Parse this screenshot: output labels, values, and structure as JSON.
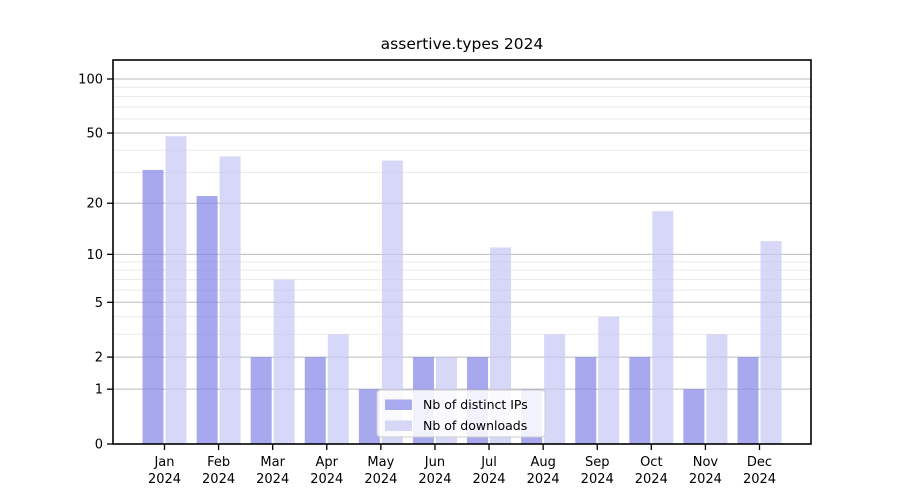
{
  "figure": {
    "title": "assertive.types 2024",
    "background": "#ffffff"
  },
  "chart_data": {
    "type": "bar",
    "title": "assertive.types 2024",
    "xlabel": "",
    "ylabel": "",
    "grid": true,
    "y_scale": "symlog (y proportional to ln(1+v))",
    "categories": [
      "Jan",
      "Feb",
      "Mar",
      "Apr",
      "May",
      "Jun",
      "Jul",
      "Aug",
      "Sep",
      "Oct",
      "Nov",
      "Dec"
    ],
    "x_tick_year_line": "2024",
    "series": [
      {
        "name": "Nb of distinct IPs",
        "values": [
          31,
          22,
          2,
          2,
          1,
          2,
          2,
          1,
          2,
          2,
          1,
          2
        ]
      },
      {
        "name": "Nb of downloads",
        "values": [
          48,
          37,
          7,
          3,
          35,
          2,
          11,
          3,
          4,
          18,
          3,
          12
        ]
      }
    ],
    "y_major_ticks": [
      0,
      1,
      2,
      5,
      10,
      20,
      50,
      100
    ],
    "y_minor_gridlines": [
      3,
      4,
      6,
      7,
      8,
      9,
      30,
      40,
      60,
      70,
      80,
      90
    ],
    "ylim": [
      0,
      127
    ],
    "legend_position": "lower center-left inside plot"
  },
  "legend": {
    "entries": [
      "Nb of distinct IPs",
      "Nb of downloads"
    ]
  },
  "colors": {
    "bar_distinct_ips_base": "#8587e8",
    "bar_distinct_ips_rendered": "#a8a9ef",
    "bar_downloads_base": "#c7c8f4",
    "bar_downloads_rendered": "#d6d7f7",
    "bar_fill_opacity": 0.72,
    "grid_major": "#bbbbbb",
    "grid_minor": "#e8e8e8",
    "axis": "#000000",
    "tick_text": "#000000",
    "legend_bg": "rgba(255,255,255,0.85)",
    "legend_border": "#cccccc"
  }
}
